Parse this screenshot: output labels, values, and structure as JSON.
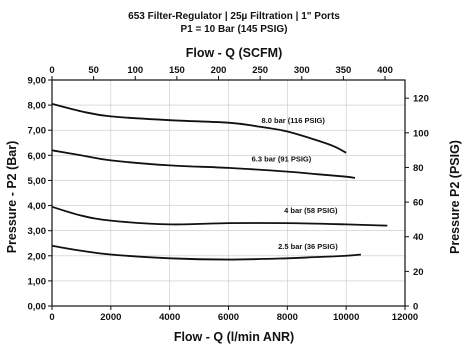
{
  "chart_data": {
    "type": "line",
    "title_lines": [
      "653 Filter-Regulator | 25µ Filtration | 1\" Ports",
      "P1 = 10 Bar (145 PSIG)"
    ],
    "xlabel": "Flow - Q (l/min ANR)",
    "x2label": "Flow - Q (SCFM)",
    "ylabel": "Pressure - P2 (Bar)",
    "y2label": "Pressure P2 (PSIG)",
    "xlim": [
      0,
      12000
    ],
    "ylim": [
      0,
      9
    ],
    "x2lim": [
      0,
      424
    ],
    "y2lim": [
      0,
      130.5
    ],
    "xticks": [
      "0",
      "2000",
      "4000",
      "6000",
      "8000",
      "10000",
      "12000"
    ],
    "x2ticks": [
      "0",
      "50",
      "100",
      "150",
      "200",
      "250",
      "300",
      "350",
      "400"
    ],
    "yticks": [
      "0,00",
      "1,00",
      "2,00",
      "3,00",
      "4,00",
      "5,00",
      "6,00",
      "7,00",
      "8,00",
      "9,00"
    ],
    "y2ticks": [
      "0",
      "20",
      "40",
      "60",
      "80",
      "100",
      "120"
    ],
    "grid": true,
    "series": [
      {
        "name": "8.0 bar (116 PSIG)",
        "x": [
          0,
          1000,
          2000,
          4000,
          6000,
          7000,
          8000,
          9000,
          9600,
          10000
        ],
        "y": [
          8.05,
          7.75,
          7.55,
          7.4,
          7.3,
          7.15,
          6.95,
          6.6,
          6.35,
          6.1
        ]
      },
      {
        "name": "6.3 bar (91 PSIG)",
        "x": [
          0,
          1000,
          2000,
          4000,
          6000,
          8000,
          9000,
          10000,
          10300
        ],
        "y": [
          6.2,
          6.0,
          5.8,
          5.6,
          5.5,
          5.35,
          5.25,
          5.15,
          5.1
        ]
      },
      {
        "name": "4 bar (58 PSIG)",
        "x": [
          0,
          1000,
          2000,
          4000,
          6000,
          8000,
          10000,
          11400
        ],
        "y": [
          3.95,
          3.6,
          3.4,
          3.25,
          3.3,
          3.3,
          3.25,
          3.2
        ]
      },
      {
        "name": "2.5 bar (36 PSIG)",
        "x": [
          0,
          1000,
          2000,
          4000,
          6000,
          8000,
          9000,
          10000,
          10500
        ],
        "y": [
          2.4,
          2.2,
          2.05,
          1.9,
          1.85,
          1.9,
          1.95,
          2.0,
          2.05
        ]
      }
    ]
  }
}
